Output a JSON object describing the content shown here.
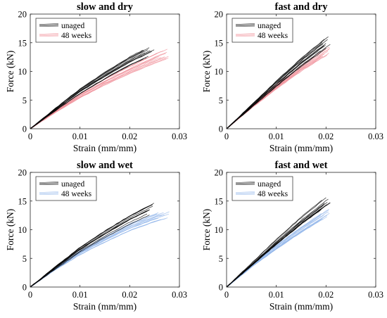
{
  "chart_data": [
    {
      "type": "line",
      "title": "slow and dry",
      "xlabel": "Strain (mm/mm)",
      "ylabel": "Force (kN)",
      "xlim": [
        0,
        0.03
      ],
      "ylim": [
        0,
        20
      ],
      "xticks": [
        0,
        0.01,
        0.02,
        0.03
      ],
      "xtick_labels": [
        "0",
        "0.01",
        "0.02",
        "0.03"
      ],
      "yticks": [
        0,
        5,
        10,
        15,
        20
      ],
      "ytick_labels": [
        "0",
        "5",
        "10",
        "15",
        "20"
      ],
      "legend": "top-left",
      "series": [
        {
          "name": "unaged",
          "color": "#000000",
          "x": [
            0,
            0.005,
            0.01,
            0.015,
            0.02,
            0.025
          ],
          "y": [
            0,
            3.3,
            6.5,
            9.2,
            11.7,
            13.8
          ]
        },
        {
          "name": "48 weeks",
          "color": "#f08a94",
          "x": [
            0,
            0.005,
            0.01,
            0.015,
            0.02,
            0.025,
            0.028
          ],
          "y": [
            0,
            3.0,
            5.8,
            8.2,
            10.3,
            12.3,
            13.3
          ]
        }
      ]
    },
    {
      "type": "line",
      "title": "fast and dry",
      "xlabel": "Strain (mm/mm)",
      "ylabel": "Force (kN)",
      "xlim": [
        0,
        0.03
      ],
      "ylim": [
        0,
        20
      ],
      "xticks": [
        0,
        0.01,
        0.02,
        0.03
      ],
      "xtick_labels": [
        "0",
        "0.01",
        "0.02",
        "0.03"
      ],
      "yticks": [
        0,
        5,
        10,
        15,
        20
      ],
      "ytick_labels": [
        "0",
        "5",
        "10",
        "15",
        "20"
      ],
      "legend": "top-left",
      "series": [
        {
          "name": "unaged",
          "color": "#000000",
          "x": [
            0,
            0.005,
            0.01,
            0.015,
            0.021
          ],
          "y": [
            0,
            3.9,
            7.8,
            11.5,
            15.5
          ]
        },
        {
          "name": "48 weeks",
          "color": "#f08a94",
          "x": [
            0,
            0.005,
            0.01,
            0.015,
            0.021
          ],
          "y": [
            0,
            3.7,
            7.2,
            10.4,
            13.8
          ]
        }
      ]
    },
    {
      "type": "line",
      "title": "slow and wet",
      "xlabel": "Strain (mm/mm)",
      "ylabel": "Force (kN)",
      "xlim": [
        0,
        0.03
      ],
      "ylim": [
        0,
        20
      ],
      "xticks": [
        0,
        0.01,
        0.02,
        0.03
      ],
      "xtick_labels": [
        "0",
        "0.01",
        "0.02",
        "0.03"
      ],
      "yticks": [
        0,
        5,
        10,
        15,
        20
      ],
      "ytick_labels": [
        "0",
        "5",
        "10",
        "15",
        "20"
      ],
      "legend": "top-left",
      "series": [
        {
          "name": "unaged",
          "color": "#000000",
          "x": [
            0,
            0.005,
            0.01,
            0.015,
            0.02,
            0.025
          ],
          "y": [
            0,
            3.3,
            6.5,
            9.2,
            11.7,
            13.8
          ]
        },
        {
          "name": "48 weeks",
          "color": "#8fb4ea",
          "x": [
            0,
            0.005,
            0.01,
            0.015,
            0.02,
            0.025,
            0.028
          ],
          "y": [
            0,
            3.1,
            5.9,
            8.2,
            10.3,
            11.9,
            12.7
          ]
        }
      ]
    },
    {
      "type": "line",
      "title": "fast and wet",
      "xlabel": "Strain (mm/mm)",
      "ylabel": "Force (kN)",
      "xlim": [
        0,
        0.03
      ],
      "ylim": [
        0,
        20
      ],
      "xticks": [
        0,
        0.01,
        0.02,
        0.03
      ],
      "xtick_labels": [
        "0",
        "0.01",
        "0.02",
        "0.03"
      ],
      "yticks": [
        0,
        5,
        10,
        15,
        20
      ],
      "ytick_labels": [
        "0",
        "5",
        "10",
        "15",
        "20"
      ],
      "legend": "top-left",
      "series": [
        {
          "name": "unaged",
          "color": "#000000",
          "x": [
            0,
            0.005,
            0.01,
            0.015,
            0.021
          ],
          "y": [
            0,
            3.9,
            7.8,
            11.5,
            15.5
          ]
        },
        {
          "name": "48 weeks",
          "color": "#8fb4ea",
          "x": [
            0,
            0.005,
            0.01,
            0.015,
            0.021
          ],
          "y": [
            0,
            3.7,
            7.1,
            10.2,
            13.6
          ]
        }
      ]
    }
  ]
}
